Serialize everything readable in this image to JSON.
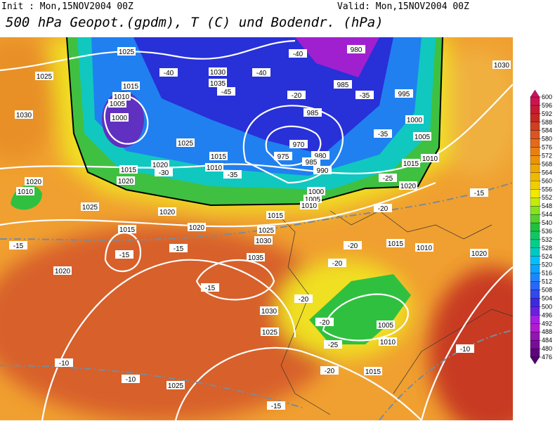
{
  "header": {
    "init": "Init : Mon,15NOV2004 00Z",
    "valid": "Valid: Mon,15NOV2004 00Z",
    "title": "500 hPa Geopot.(gpdm), T (C) und Bodendr. (hPa)"
  },
  "colorbar": {
    "ticks": [
      476,
      480,
      484,
      488,
      492,
      496,
      500,
      504,
      508,
      512,
      516,
      520,
      524,
      528,
      532,
      536,
      540,
      544,
      548,
      552,
      556,
      560,
      564,
      568,
      572,
      576,
      580,
      584,
      588,
      592,
      596,
      600
    ]
  },
  "contour_labels": [
    "1025",
    "1025",
    "1015",
    "1010",
    "1005",
    "1000",
    "-40",
    "1030",
    "1035",
    "-45",
    "-40",
    "-40",
    "980",
    "985",
    "-35",
    "995",
    "-20",
    "985",
    "970",
    "975",
    "980",
    "985",
    "990",
    "1000",
    "-35",
    "1005",
    "1015",
    "1010",
    "1030",
    "1030",
    "1025",
    "1015",
    "1010",
    "-30",
    "1020",
    "1015",
    "1020",
    "-35",
    "1020",
    "1010",
    "1025",
    "1020",
    "1015",
    "1020",
    "1015",
    "1025",
    "1030",
    "-15",
    "-15",
    "-15",
    "1020",
    "1035",
    "-15",
    "-20",
    "-15",
    "1015",
    "1010",
    "1020",
    "-20",
    "-20",
    "-20",
    "1030",
    "1025",
    "-20",
    "1005",
    "1010",
    "-25",
    "-10",
    "-10",
    "-10",
    "1025",
    "-20",
    "1015",
    "-15",
    "1000",
    "1005",
    "1010",
    "-25",
    "1020"
  ]
}
